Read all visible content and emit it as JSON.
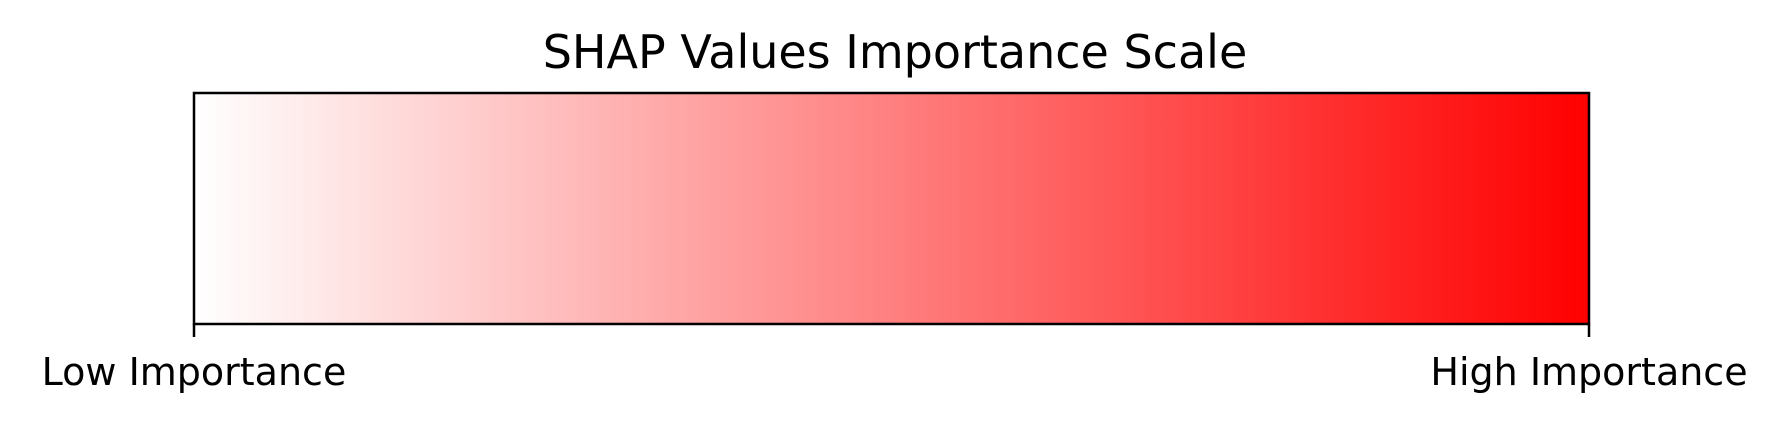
{
  "chart_data": {
    "type": "heatmap",
    "title": "SHAP Values Importance Scale",
    "xlabel": "",
    "ylabel": "",
    "colormap": {
      "name": "white-to-red",
      "low_color": "#ffffff",
      "high_color": "#ff0000"
    },
    "xlim": [
      0,
      1
    ],
    "ticks": [
      {
        "value": 0,
        "label": "Low Importance"
      },
      {
        "value": 1,
        "label": "High Importance"
      }
    ],
    "grid": false,
    "legend": "none"
  }
}
